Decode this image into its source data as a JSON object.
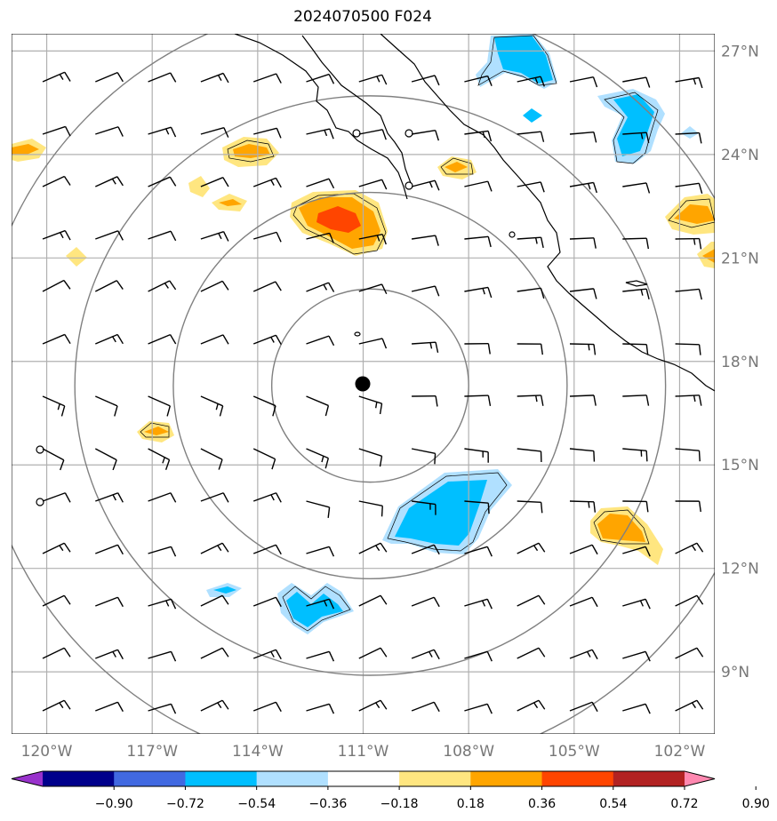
{
  "title": "2024070500 F024",
  "map": {
    "lon_range": [
      -121,
      -101
    ],
    "lat_range": [
      7.2,
      27.5
    ],
    "center": {
      "lon": -110.8,
      "lat": 17.3
    },
    "range_ring_radii_deg": [
      2.8,
      5.6,
      8.4,
      11.2
    ],
    "lat_ticks": [
      {
        "value": 27,
        "label": "27°N"
      },
      {
        "value": 24,
        "label": "24°N"
      },
      {
        "value": 21,
        "label": "21°N"
      },
      {
        "value": 18,
        "label": "18°N"
      },
      {
        "value": 15,
        "label": "15°N"
      },
      {
        "value": 12,
        "label": "12°N"
      },
      {
        "value": 9,
        "label": "9°N"
      }
    ],
    "lon_ticks": [
      {
        "value": -120,
        "label": "120°W"
      },
      {
        "value": -117,
        "label": "117°W"
      },
      {
        "value": -114,
        "label": "114°W"
      },
      {
        "value": -111,
        "label": "111°W"
      },
      {
        "value": -108,
        "label": "108°W"
      },
      {
        "value": -105,
        "label": "105°W"
      },
      {
        "value": -102,
        "label": "102°W"
      }
    ],
    "grid": true,
    "colors": {
      "grid": "#b0b0b0",
      "rings": "#808080",
      "coast": "#000000",
      "barb": "#000000"
    }
  },
  "colorbar": {
    "levels": [
      "−0.90",
      "−0.72",
      "−0.54",
      "−0.36",
      "−0.18",
      "0.18",
      "0.36",
      "0.54",
      "0.72",
      "0.90"
    ],
    "colors": [
      "#9932cc",
      "#00008b",
      "#4169e1",
      "#00bfff",
      "#b0e0ff",
      "#ffffff",
      "#ffe680",
      "#ffa500",
      "#ff4500",
      "#b22222",
      "#ff88b0"
    ]
  }
}
